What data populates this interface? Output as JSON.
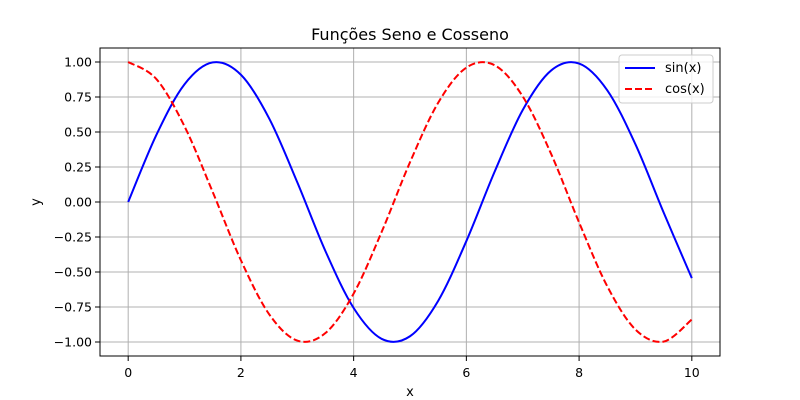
{
  "chart_data": {
    "type": "line",
    "title": "Funções Seno e Cosseno",
    "xlabel": "x",
    "ylabel": "y",
    "xlim": [
      -0.5,
      10.5
    ],
    "ylim": [
      -1.1,
      1.1
    ],
    "grid": true,
    "legend_position": "top-right",
    "x_ticks": [
      {
        "value": 0,
        "label": "0"
      },
      {
        "value": 2,
        "label": "2"
      },
      {
        "value": 4,
        "label": "4"
      },
      {
        "value": 6,
        "label": "6"
      },
      {
        "value": 8,
        "label": "8"
      },
      {
        "value": 10,
        "label": "10"
      }
    ],
    "y_ticks": [
      {
        "value": 1.0,
        "label": "1.00"
      },
      {
        "value": 0.75,
        "label": "0.75"
      },
      {
        "value": 0.5,
        "label": "0.50"
      },
      {
        "value": 0.25,
        "label": "0.25"
      },
      {
        "value": 0.0,
        "label": "0.00"
      },
      {
        "value": -0.25,
        "label": "−0.25"
      },
      {
        "value": -0.5,
        "label": "−0.50"
      },
      {
        "value": -0.75,
        "label": "−0.75"
      },
      {
        "value": -1.0,
        "label": "−1.00"
      }
    ],
    "x": [
      0,
      0.5,
      1,
      1.5,
      2,
      2.5,
      3,
      3.5,
      4,
      4.5,
      5,
      5.5,
      6,
      6.5,
      7,
      7.5,
      8,
      8.5,
      9,
      9.5,
      10
    ],
    "series": [
      {
        "name": "sin(x)",
        "color": "#0000ff",
        "style": "solid",
        "values": [
          0.0,
          0.479,
          0.841,
          0.997,
          0.909,
          0.598,
          0.141,
          -0.351,
          -0.757,
          -0.978,
          -0.959,
          -0.706,
          -0.279,
          0.215,
          0.657,
          0.938,
          0.989,
          0.798,
          0.412,
          -0.075,
          -0.544
        ]
      },
      {
        "name": "cos(x)",
        "color": "#ff0000",
        "style": "dashed",
        "values": [
          1.0,
          0.878,
          0.54,
          0.071,
          -0.416,
          -0.801,
          -0.99,
          -0.936,
          -0.654,
          -0.211,
          0.284,
          0.709,
          0.96,
          0.977,
          0.754,
          0.347,
          -0.146,
          -0.602,
          -0.911,
          -0.997,
          -0.839
        ]
      }
    ]
  }
}
